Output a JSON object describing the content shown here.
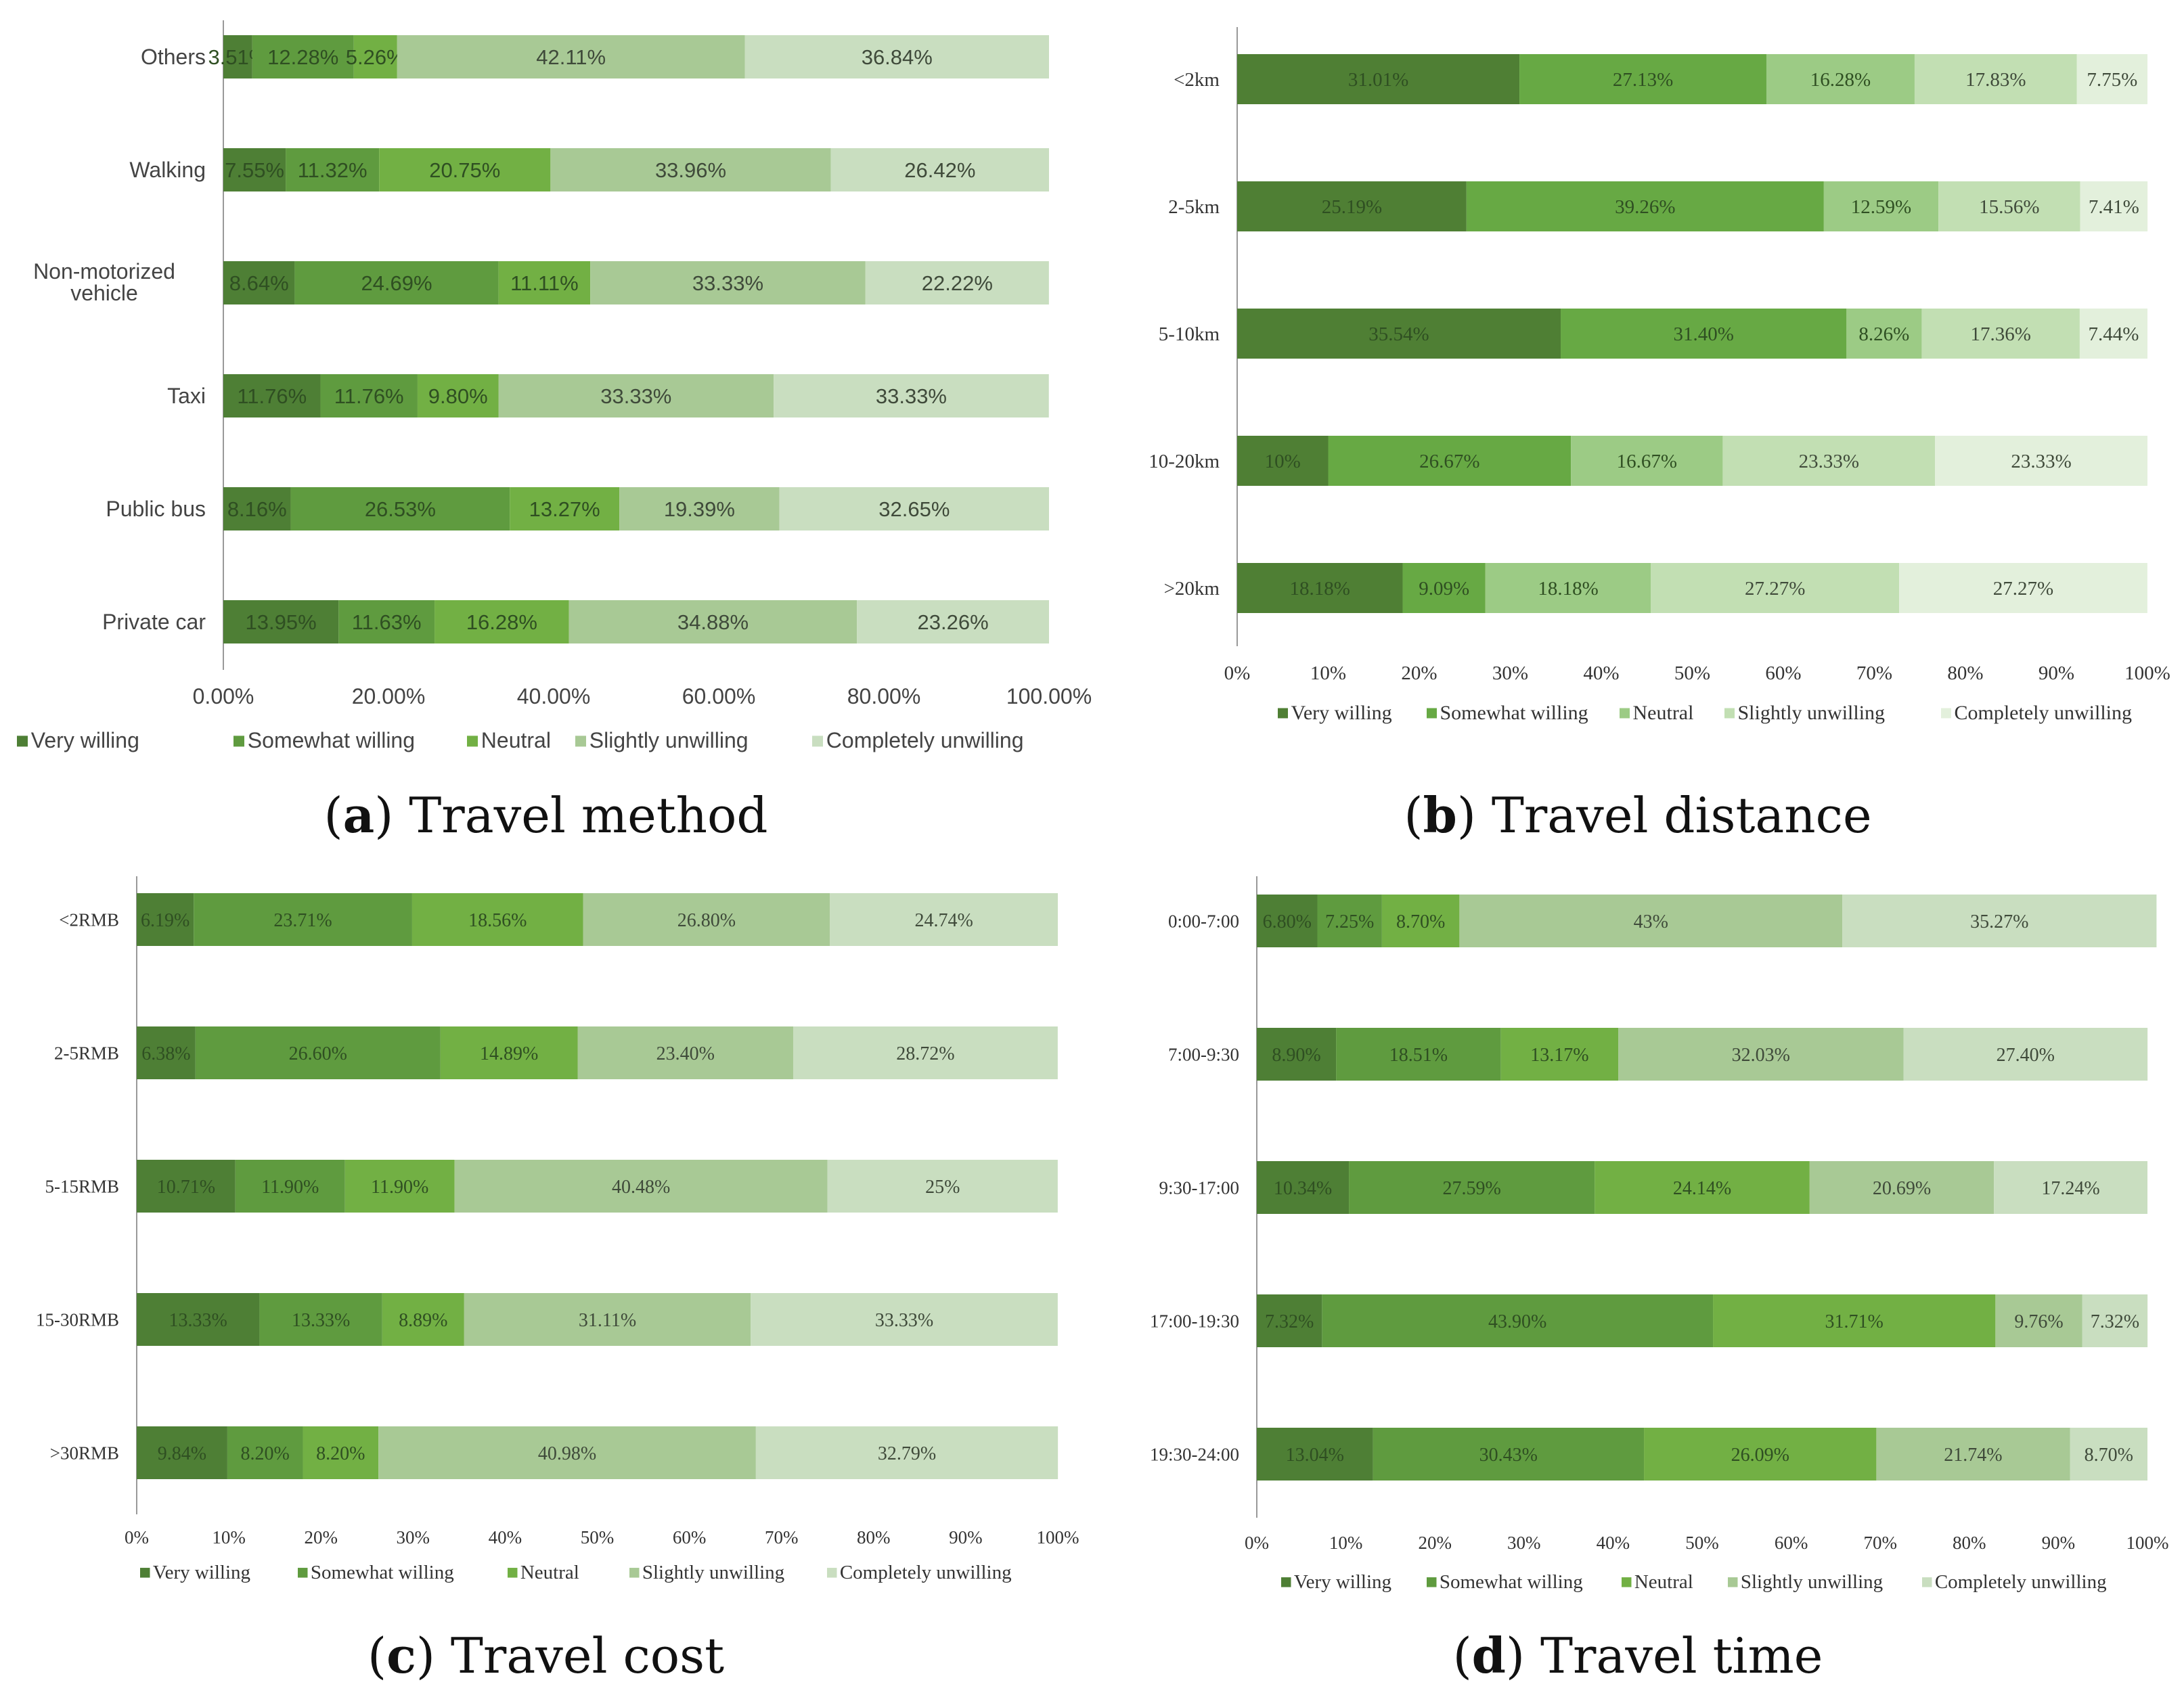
{
  "chart_data": [
    {
      "type": "bar",
      "orientation": "horizontal",
      "stacked": true,
      "panel": "a",
      "caption_letter": "a",
      "caption_text": "Travel method",
      "categories": [
        "Others",
        "Walking",
        "Non-motorized vehicle",
        "Taxi",
        "Public bus",
        "Private car"
      ],
      "series": [
        {
          "name": "Very willing",
          "color": "#4e7f35",
          "values": [
            3.51,
            7.55,
            8.64,
            11.76,
            8.16,
            13.95
          ],
          "labels": [
            "3.51%",
            "7.55%",
            "8.64%",
            "11.76%",
            "8.16%",
            "13.95%"
          ]
        },
        {
          "name": "Somewhat willing",
          "color": "#5f9b3f",
          "values": [
            12.28,
            11.32,
            24.69,
            11.76,
            26.53,
            11.63
          ],
          "labels": [
            "12.28%",
            "11.32%",
            "24.69%",
            "11.76%",
            "26.53%",
            "11.63%"
          ]
        },
        {
          "name": "Neutral",
          "color": "#72b044",
          "values": [
            5.26,
            20.75,
            11.11,
            9.8,
            13.27,
            16.28
          ],
          "labels": [
            "5.26%",
            "20.75%",
            "11.11%",
            "9.80%",
            "13.27%",
            "16.28%"
          ]
        },
        {
          "name": "Slightly unwilling",
          "color": "#a8c995",
          "values": [
            42.11,
            33.96,
            33.33,
            33.33,
            19.39,
            34.88
          ],
          "labels": [
            "42.11%",
            "33.96%",
            "33.33%",
            "33.33%",
            "19.39%",
            "34.88%"
          ]
        },
        {
          "name": "Completely unwilling",
          "color": "#c9dec0",
          "values": [
            36.84,
            26.42,
            22.22,
            33.33,
            32.65,
            23.26
          ],
          "labels": [
            "36.84%",
            "26.42%",
            "22.22%",
            "33.33%",
            "32.65%",
            "23.26%"
          ]
        }
      ],
      "xticks": [
        "0.00%",
        "20.00%",
        "40.00%",
        "60.00%",
        "80.00%",
        "100.00%"
      ],
      "xlim": [
        0,
        100
      ],
      "legend": "bottom",
      "grid": false
    },
    {
      "type": "bar",
      "orientation": "horizontal",
      "stacked": true,
      "panel": "b",
      "caption_letter": "b",
      "caption_text": "Travel distance",
      "categories": [
        "<2km",
        "2-5km",
        "5-10km",
        "10-20km",
        ">20km"
      ],
      "series": [
        {
          "name": "Very willing",
          "color": "#4f7f34",
          "values": [
            31.01,
            25.19,
            35.54,
            10,
            18.18
          ],
          "labels": [
            "31.01%",
            "25.19%",
            "35.54%",
            "10%",
            "18.18%"
          ]
        },
        {
          "name": "Somewhat willing",
          "color": "#67a944",
          "values": [
            27.13,
            39.26,
            31.4,
            26.67,
            9.09
          ],
          "labels": [
            "27.13%",
            "39.26%",
            "31.40%",
            "26.67%",
            "9.09%"
          ]
        },
        {
          "name": "Neutral",
          "color": "#9ccb85",
          "values": [
            16.28,
            12.59,
            8.26,
            16.67,
            18.18
          ],
          "labels": [
            "16.28%",
            "12.59%",
            "8.26%",
            "16.67%",
            "18.18%"
          ]
        },
        {
          "name": "Slightly unwilling",
          "color": "#c2dfb3",
          "values": [
            17.83,
            15.56,
            17.36,
            23.33,
            27.27
          ],
          "labels": [
            "17.83%",
            "15.56%",
            "17.36%",
            "23.33%",
            "27.27%"
          ]
        },
        {
          "name": "Completely unwilling",
          "color": "#e3f0dc",
          "values": [
            7.75,
            7.41,
            7.44,
            23.33,
            27.27
          ],
          "labels": [
            "7.75%",
            "7.41%",
            "7.44%",
            "23.33%",
            "27.27%"
          ]
        }
      ],
      "xticks": [
        "0%",
        "10%",
        "20%",
        "30%",
        "40%",
        "50%",
        "60%",
        "70%",
        "80%",
        "90%",
        "100%"
      ],
      "xlim": [
        0,
        100
      ],
      "legend": "bottom",
      "grid": false
    },
    {
      "type": "bar",
      "orientation": "horizontal",
      "stacked": true,
      "panel": "c",
      "caption_letter": "c",
      "caption_text": "Travel cost",
      "categories": [
        "<2RMB",
        "2-5RMB",
        "5-15RMB",
        "15-30RMB",
        ">30RMB"
      ],
      "series": [
        {
          "name": "Very willing",
          "color": "#4e7f35",
          "values": [
            6.19,
            6.38,
            10.71,
            13.33,
            9.84
          ],
          "labels": [
            "6.19%",
            "6.38%",
            "10.71%",
            "13.33%",
            "9.84%"
          ]
        },
        {
          "name": "Somewhat willing",
          "color": "#5f9b3f",
          "values": [
            23.71,
            26.6,
            11.9,
            13.33,
            8.2
          ],
          "labels": [
            "23.71%",
            "26.60%",
            "11.90%",
            "13.33%",
            "8.20%"
          ]
        },
        {
          "name": "Neutral",
          "color": "#72b044",
          "values": [
            18.56,
            14.89,
            11.9,
            8.89,
            8.2
          ],
          "labels": [
            "18.56%",
            "14.89%",
            "11.90%",
            "8.89%",
            "8.20%"
          ]
        },
        {
          "name": "Slightly unwilling",
          "color": "#a8c995",
          "values": [
            26.8,
            23.4,
            40.48,
            31.11,
            40.98
          ],
          "labels": [
            "26.80%",
            "23.40%",
            "40.48%",
            "31.11%",
            "40.98%"
          ]
        },
        {
          "name": "Completely unwilling",
          "color": "#c9dec0",
          "values": [
            24.74,
            28.72,
            25,
            33.33,
            32.79
          ],
          "labels": [
            "24.74%",
            "28.72%",
            "25%",
            "33.33%",
            "32.79%"
          ]
        }
      ],
      "xticks": [
        "0%",
        "10%",
        "20%",
        "30%",
        "40%",
        "50%",
        "60%",
        "70%",
        "80%",
        "90%",
        "100%"
      ],
      "xlim": [
        0,
        100
      ],
      "legend": "bottom",
      "grid": false
    },
    {
      "type": "bar",
      "orientation": "horizontal",
      "stacked": true,
      "panel": "d",
      "caption_letter": "d",
      "caption_text": "Travel time",
      "categories": [
        "0:00-7:00",
        "7:00-9:30",
        "9:30-17:00",
        "17:00-19:30",
        "19:30-24:00"
      ],
      "series": [
        {
          "name": "Very willing",
          "color": "#4e7f35",
          "values": [
            6.8,
            8.9,
            10.34,
            7.32,
            13.04
          ],
          "labels": [
            "6.80%",
            "8.90%",
            "10.34%",
            "7.32%",
            "13.04%"
          ]
        },
        {
          "name": "Somewhat willing",
          "color": "#5f9b3f",
          "values": [
            7.25,
            18.51,
            27.59,
            43.9,
            30.43
          ],
          "labels": [
            "7.25%",
            "18.51%",
            "27.59%",
            "43.90%",
            "30.43%"
          ]
        },
        {
          "name": "Neutral",
          "color": "#72b044",
          "values": [
            8.7,
            13.17,
            24.14,
            31.71,
            26.09
          ],
          "labels": [
            "8.70%",
            "13.17%",
            "24.14%",
            "31.71%",
            "26.09%"
          ]
        },
        {
          "name": "Slightly unwilling",
          "color": "#a8c995",
          "values": [
            43,
            32.03,
            20.69,
            9.76,
            21.74
          ],
          "labels": [
            "43%",
            "32.03%",
            "20.69%",
            "9.76%",
            "21.74%"
          ]
        },
        {
          "name": "Completely unwilling",
          "color": "#c9dec0",
          "values": [
            35.27,
            27.4,
            17.24,
            7.32,
            8.7
          ],
          "labels": [
            "35.27%",
            "27.40%",
            "17.24%",
            "7.32%",
            "8.70%"
          ]
        }
      ],
      "xticks": [
        "0%",
        "10%",
        "20%",
        "30%",
        "40%",
        "50%",
        "60%",
        "70%",
        "80%",
        "90%",
        "100%"
      ],
      "xlim": [
        0,
        100
      ],
      "legend": "bottom",
      "grid": false
    }
  ]
}
